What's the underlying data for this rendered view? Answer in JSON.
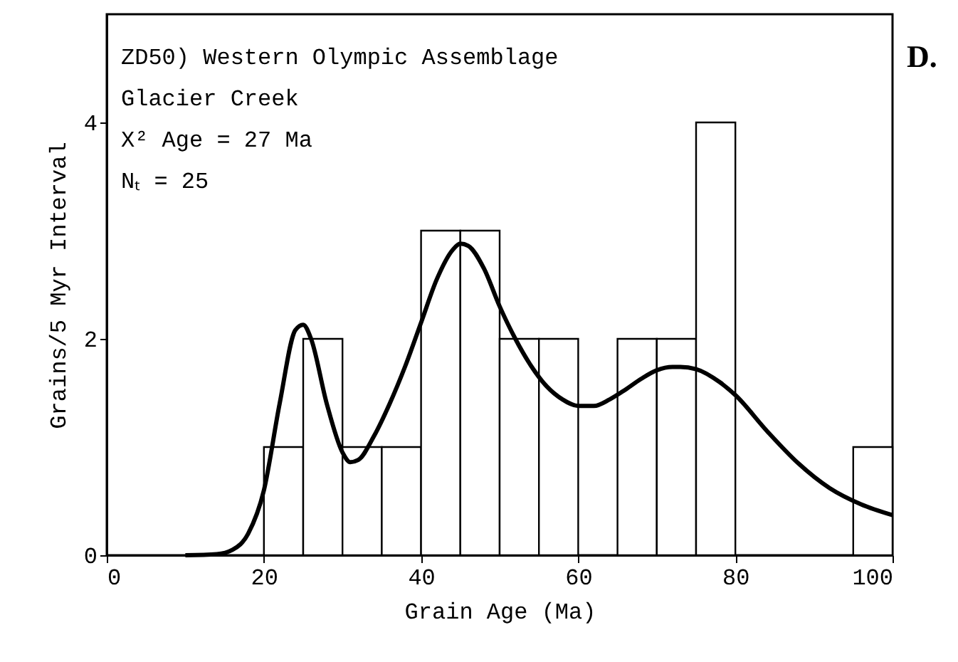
{
  "chart_data": {
    "type": "histogram",
    "xlabel": "Grain Age (Ma)",
    "ylabel": "Grains/5 Myr Interval",
    "bins": [
      0,
      5,
      10,
      15,
      20,
      25,
      30,
      35,
      40,
      45,
      50,
      55,
      60,
      65,
      70,
      75,
      80,
      85,
      90,
      95,
      100
    ],
    "values": [
      0,
      0,
      0,
      0,
      1,
      2,
      1,
      1,
      3,
      3,
      2,
      2,
      0,
      2,
      2,
      4,
      0,
      0,
      0,
      1
    ],
    "color": "#ffffff",
    "series": [
      {
        "type": "line",
        "color": "#000000",
        "x": [
          10,
          14,
          16,
          18,
          20,
          22,
          24,
          25,
          26,
          28,
          30,
          31,
          32,
          34,
          36,
          38,
          40,
          42,
          44,
          45,
          46,
          48,
          50,
          52,
          54,
          56,
          58,
          60,
          62,
          64,
          66,
          68,
          70,
          72,
          73,
          75,
          78,
          80,
          84,
          88,
          92,
          96,
          100
        ],
        "values": [
          0,
          0.01,
          0.05,
          0.2,
          0.6,
          1.4,
          2.08,
          2.13,
          2.0,
          1.4,
          0.95,
          0.86,
          0.88,
          1.1,
          1.4,
          1.75,
          2.15,
          2.55,
          2.82,
          2.88,
          2.86,
          2.65,
          2.3,
          2.0,
          1.75,
          1.56,
          1.44,
          1.38,
          1.38,
          1.44,
          1.53,
          1.63,
          1.71,
          1.74,
          1.74,
          1.72,
          1.6,
          1.48,
          1.15,
          0.85,
          0.62,
          0.47,
          0.37
        ]
      }
    ],
    "xlim": [
      0,
      100
    ],
    "ylim": [
      0,
      5
    ],
    "xticks": [
      0,
      20,
      40,
      60,
      80,
      100
    ],
    "yticks": [
      0,
      2,
      4
    ],
    "annotations": [
      "ZD50) Western Olympic Assemblage",
      "Glacier Creek",
      "X² Age = 27 Ma",
      "Nₜ = 25",
      "D."
    ]
  }
}
